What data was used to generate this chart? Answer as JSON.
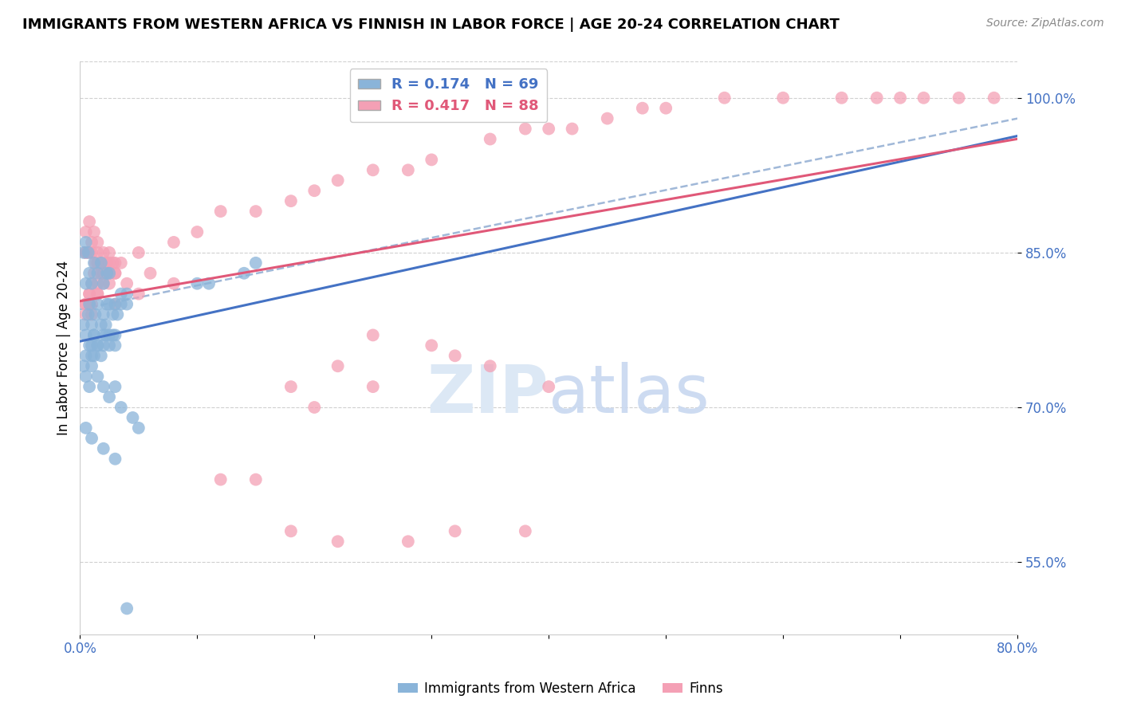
{
  "title": "IMMIGRANTS FROM WESTERN AFRICA VS FINNISH IN LABOR FORCE | AGE 20-24 CORRELATION CHART",
  "source": "Source: ZipAtlas.com",
  "ylabel": "In Labor Force | Age 20-24",
  "xlim": [
    0.0,
    80.0
  ],
  "ylim": [
    48.0,
    103.5
  ],
  "yticks": [
    55.0,
    70.0,
    85.0,
    100.0
  ],
  "ytick_labels": [
    "55.0%",
    "70.0%",
    "85.0%",
    "100.0%"
  ],
  "blue_R": 0.174,
  "blue_N": 69,
  "pink_R": 0.417,
  "pink_N": 88,
  "blue_color": "#8ab4d9",
  "pink_color": "#f4a0b5",
  "blue_line_color": "#4472c4",
  "pink_line_color": "#e05878",
  "dashed_line_color": "#a0b8d8",
  "legend_blue_label": "Immigrants from Western Africa",
  "legend_pink_label": "Finns",
  "blue_x": [
    0.3,
    0.5,
    0.7,
    0.8,
    1.0,
    1.0,
    1.2,
    1.3,
    1.5,
    1.5,
    1.8,
    2.0,
    2.0,
    2.2,
    2.3,
    2.5,
    2.5,
    2.8,
    3.0,
    3.0,
    3.2,
    3.5,
    3.5,
    4.0,
    4.0,
    0.5,
    0.8,
    1.0,
    1.2,
    1.5,
    1.8,
    2.0,
    2.2,
    2.5,
    2.8,
    3.0,
    0.3,
    0.5,
    0.8,
    1.0,
    1.2,
    1.5,
    2.0,
    2.5,
    3.0,
    3.5,
    4.5,
    5.0,
    0.5,
    1.0,
    1.5,
    2.0,
    2.5,
    0.8,
    1.2,
    1.8,
    2.3,
    0.3,
    0.5,
    0.7,
    10.0,
    11.0,
    14.0,
    15.0,
    0.5,
    1.0,
    2.0,
    3.0,
    4.0
  ],
  "blue_y": [
    78.0,
    77.0,
    79.0,
    80.0,
    76.0,
    78.0,
    77.0,
    79.0,
    76.0,
    80.0,
    78.0,
    77.0,
    79.0,
    78.0,
    80.0,
    77.0,
    80.0,
    79.0,
    77.0,
    80.0,
    79.0,
    80.0,
    81.0,
    80.0,
    81.0,
    75.0,
    76.0,
    75.0,
    77.0,
    76.0,
    75.0,
    76.0,
    77.0,
    76.0,
    77.0,
    76.0,
    74.0,
    73.0,
    72.0,
    74.0,
    75.0,
    73.0,
    72.0,
    71.0,
    72.0,
    70.0,
    69.0,
    68.0,
    82.0,
    82.0,
    83.0,
    82.0,
    83.0,
    83.0,
    84.0,
    84.0,
    83.0,
    85.0,
    86.0,
    85.0,
    82.0,
    82.0,
    83.0,
    84.0,
    68.0,
    67.0,
    66.0,
    65.0,
    50.5
  ],
  "pink_x": [
    0.5,
    0.8,
    1.0,
    1.2,
    1.5,
    1.8,
    2.0,
    2.3,
    2.5,
    2.8,
    3.0,
    3.5,
    0.5,
    0.8,
    1.0,
    1.3,
    1.5,
    2.0,
    2.5,
    3.0,
    0.5,
    0.8,
    1.2,
    1.5,
    2.0,
    2.5,
    3.0,
    0.5,
    0.8,
    1.0,
    1.5,
    2.0,
    2.5,
    0.5,
    0.8,
    1.0,
    1.5,
    0.5,
    1.0,
    1.5,
    2.0,
    5.0,
    8.0,
    10.0,
    12.0,
    15.0,
    18.0,
    20.0,
    22.0,
    25.0,
    28.0,
    30.0,
    35.0,
    38.0,
    40.0,
    42.0,
    45.0,
    48.0,
    50.0,
    55.0,
    60.0,
    65.0,
    68.0,
    70.0,
    72.0,
    75.0,
    78.0,
    25.0,
    30.0,
    32.0,
    35.0,
    40.0,
    18.0,
    22.0,
    25.0,
    20.0,
    3.0,
    4.0,
    5.0,
    6.0,
    8.0,
    12.0,
    15.0,
    18.0,
    22.0,
    28.0,
    32.0,
    38.0
  ],
  "pink_y": [
    80.0,
    81.0,
    82.0,
    83.0,
    82.0,
    83.0,
    83.0,
    84.0,
    82.0,
    84.0,
    83.0,
    84.0,
    85.0,
    85.0,
    86.0,
    84.0,
    85.0,
    84.0,
    85.0,
    84.0,
    87.0,
    88.0,
    87.0,
    86.0,
    85.0,
    84.0,
    83.0,
    80.0,
    81.0,
    80.0,
    81.0,
    82.0,
    83.0,
    79.0,
    80.0,
    79.0,
    81.0,
    85.0,
    85.0,
    84.0,
    83.0,
    85.0,
    86.0,
    87.0,
    89.0,
    89.0,
    90.0,
    91.0,
    92.0,
    93.0,
    93.0,
    94.0,
    96.0,
    97.0,
    97.0,
    97.0,
    98.0,
    99.0,
    99.0,
    100.0,
    100.0,
    100.0,
    100.0,
    100.0,
    100.0,
    100.0,
    100.0,
    77.0,
    76.0,
    75.0,
    74.0,
    72.0,
    72.0,
    74.0,
    72.0,
    70.0,
    80.0,
    82.0,
    81.0,
    83.0,
    82.0,
    63.0,
    63.0,
    58.0,
    57.0,
    57.0,
    58.0,
    58.0
  ]
}
